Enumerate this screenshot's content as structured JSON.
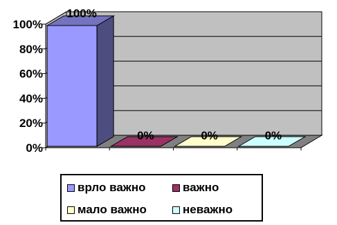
{
  "chart_data": {
    "type": "bar",
    "categories": [
      "врло важно",
      "важно",
      "мало важно",
      "неважно"
    ],
    "values": [
      100,
      0,
      0,
      0
    ],
    "data_labels": [
      "100%",
      "0%",
      "0%",
      "0%"
    ],
    "ylim": [
      0,
      100
    ],
    "y_ticks": [
      {
        "value": 0,
        "label": "0%"
      },
      {
        "value": 20,
        "label": "20%"
      },
      {
        "value": 40,
        "label": "40%"
      },
      {
        "value": 60,
        "label": "60%"
      },
      {
        "value": 80,
        "label": "80%"
      },
      {
        "value": 100,
        "label": "100%"
      }
    ],
    "grid": true,
    "three_d": true,
    "legend_position": "bottom",
    "colors": [
      "#9999ff",
      "#993366",
      "#ffffcc",
      "#ccffff"
    ],
    "wall_color": "#c0c0c0",
    "floor_color": "#808080"
  },
  "legend": {
    "items": [
      {
        "label": "врло важно",
        "color": "#9999ff"
      },
      {
        "label": "важно",
        "color": "#993366"
      },
      {
        "label": "мало важно",
        "color": "#ffffcc"
      },
      {
        "label": "неважно",
        "color": "#ccffff"
      }
    ]
  }
}
